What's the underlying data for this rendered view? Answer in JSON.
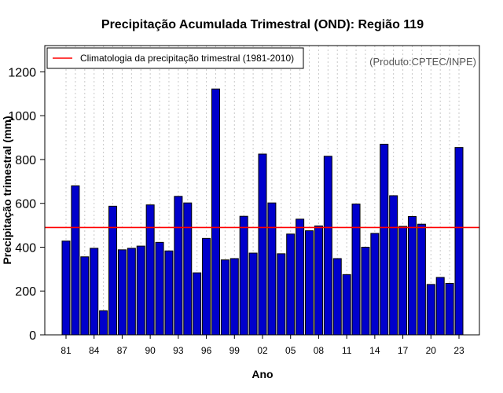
{
  "chart_data": {
    "type": "bar",
    "title": "Precipitação Acumulada Trimestral (OND): Região 119",
    "xlabel": "Ano",
    "ylabel": "Precipitação trimestral (mm)",
    "ylim": [
      0,
      1320
    ],
    "yticks": [
      0,
      200,
      400,
      600,
      800,
      1000,
      1200
    ],
    "ytick_labels": [
      "0",
      "200",
      "400",
      "600",
      "800",
      "1000",
      "1200"
    ],
    "categories": [
      1981,
      1982,
      1983,
      1984,
      1985,
      1986,
      1987,
      1988,
      1989,
      1990,
      1991,
      1992,
      1993,
      1994,
      1995,
      1996,
      1997,
      1998,
      1999,
      2000,
      2001,
      2002,
      2003,
      2004,
      2005,
      2006,
      2007,
      2008,
      2009,
      2010,
      2011,
      2012,
      2013,
      2014,
      2015,
      2016,
      2017,
      2018,
      2019,
      2020,
      2021,
      2022,
      2023
    ],
    "values": [
      428,
      680,
      356,
      395,
      110,
      587,
      388,
      395,
      405,
      593,
      422,
      383,
      632,
      602,
      283,
      440,
      1122,
      342,
      348,
      541,
      373,
      825,
      602,
      370,
      460,
      528,
      475,
      497,
      815,
      348,
      275,
      597,
      400,
      463,
      870,
      635,
      495,
      540,
      505,
      230,
      262,
      235,
      855
    ],
    "xtick_labels": [
      "81",
      "84",
      "87",
      "90",
      "93",
      "96",
      "99",
      "02",
      "05",
      "08",
      "11",
      "14",
      "17",
      "20",
      "23"
    ],
    "xtick_years": [
      1981,
      1984,
      1987,
      1990,
      1993,
      1996,
      1999,
      2002,
      2005,
      2008,
      2011,
      2014,
      2017,
      2020,
      2023
    ],
    "climatology": 490,
    "legend": {
      "label": "Climatologia da precipitação trimestral (1981-2010)",
      "position": "top-left"
    },
    "credit": "(Produto:CPTEC/INPE)",
    "grid": {
      "vertical": true,
      "horizontal": false
    },
    "colors": {
      "bar": "#0000cc",
      "bar_edge": "#000000",
      "climatology": "#ff0000",
      "grid": "#c8c8c8"
    }
  }
}
